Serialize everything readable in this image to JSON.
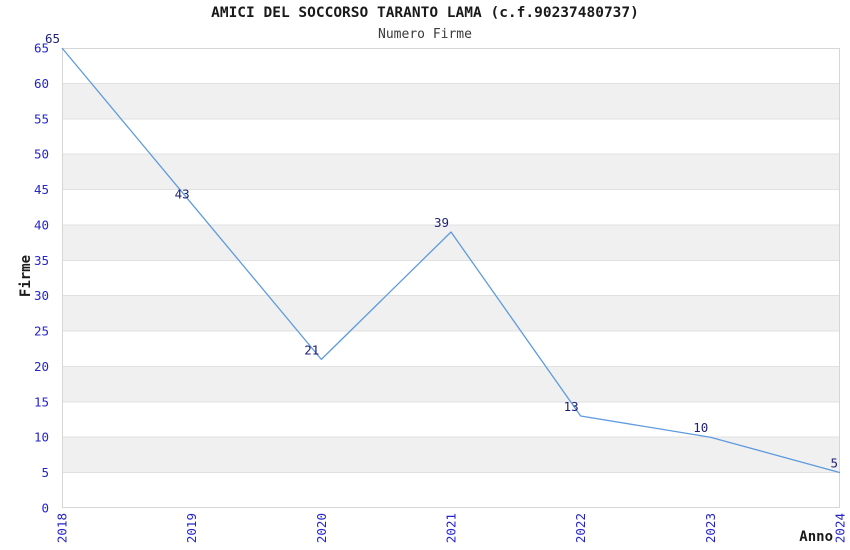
{
  "title": "AMICI DEL SOCCORSO TARANTO LAMA (c.f.90237480737)",
  "subtitle": "Numero Firme",
  "chart_data": {
    "type": "line",
    "x": [
      "2018",
      "2019",
      "2020",
      "2021",
      "2022",
      "2023",
      "2024"
    ],
    "series": [
      {
        "name": "Numero Firme",
        "values": [
          65,
          43,
          21,
          39,
          13,
          10,
          5
        ]
      }
    ],
    "title": "AMICI DEL SOCCORSO TARANTO LAMA (c.f.90237480737)",
    "subtitle": "Numero Firme",
    "xlabel": "Anno",
    "ylabel": "Firme",
    "ylim": [
      0,
      65
    ],
    "ytick_step": 5,
    "yticks": [
      0,
      5,
      10,
      15,
      20,
      25,
      30,
      35,
      40,
      45,
      50,
      55,
      60,
      65
    ],
    "grid": "horizontal-alternating-bands",
    "legend": "none",
    "data_labels_visible": true
  },
  "colors": {
    "line": "#5E9BDE",
    "tick_label": "#2424CC",
    "data_label": "#1E1E7A",
    "band_gray": "#F0F0F0",
    "band_white": "#FFFFFF",
    "gridline": "#E0E0E0",
    "plot_border": "#D6D6D6",
    "title": "#1A1A1A",
    "subtitle": "#3A3A3A",
    "axis_label": "#1A1A1A"
  }
}
